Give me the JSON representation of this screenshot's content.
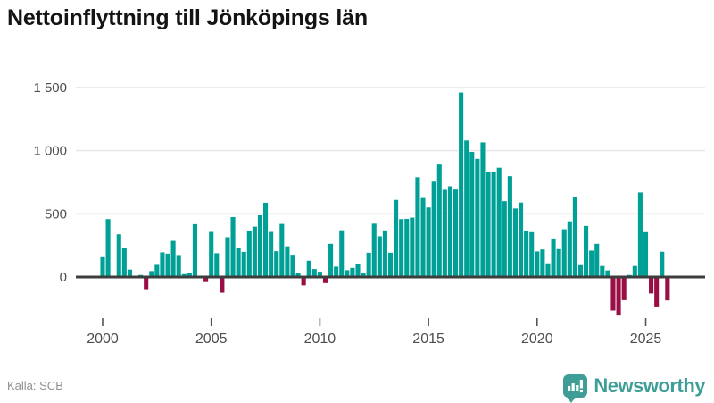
{
  "title": "Nettoinflyttning till Jönköpings län",
  "source": "Källa: SCB",
  "brand": {
    "name": "Newsworthy",
    "color": "#3e9e97"
  },
  "colors": {
    "positive": "#00a096",
    "negative": "#990e45",
    "axis": "#3d3d3d",
    "grid": "#e7e7e7",
    "tick_text": "#4d4d4d"
  },
  "chart_data": {
    "type": "bar",
    "title": "Nettoinflyttning till Jönköpings län",
    "period": "quarterly",
    "start_year": 2000,
    "start_quarter": 1,
    "xlabel": "",
    "ylabel": "",
    "grid": true,
    "legend": "none",
    "ylim": [
      -330,
      1600
    ],
    "y_ticks": [
      1500,
      1000,
      500,
      0
    ],
    "y_tick_labels": [
      "1 500",
      "1 000",
      "500",
      "0"
    ],
    "x_tick_years": [
      2000,
      2005,
      2010,
      2015,
      2020,
      2025
    ],
    "x_tick_labels": [
      "2000",
      "2005",
      "2010",
      "2015",
      "2020",
      "2025"
    ],
    "values": [
      157,
      458,
      8,
      338,
      232,
      59,
      4,
      16,
      -96,
      47,
      96,
      195,
      185,
      286,
      174,
      23,
      35,
      418,
      5,
      -40,
      357,
      188,
      -124,
      315,
      474,
      230,
      199,
      368,
      399,
      488,
      587,
      357,
      204,
      420,
      243,
      176,
      30,
      -66,
      129,
      63,
      42,
      -48,
      263,
      82,
      370,
      54,
      72,
      99,
      28,
      192,
      422,
      322,
      369,
      192,
      610,
      458,
      460,
      470,
      790,
      625,
      550,
      755,
      890,
      690,
      718,
      692,
      1460,
      1080,
      990,
      935,
      1065,
      830,
      835,
      865,
      600,
      798,
      542,
      589,
      365,
      355,
      202,
      218,
      108,
      305,
      221,
      378,
      441,
      636,
      94,
      404,
      209,
      263,
      87,
      52,
      -265,
      -305,
      -183,
      16,
      87,
      669,
      355,
      -130,
      -240,
      200,
      -185
    ]
  }
}
